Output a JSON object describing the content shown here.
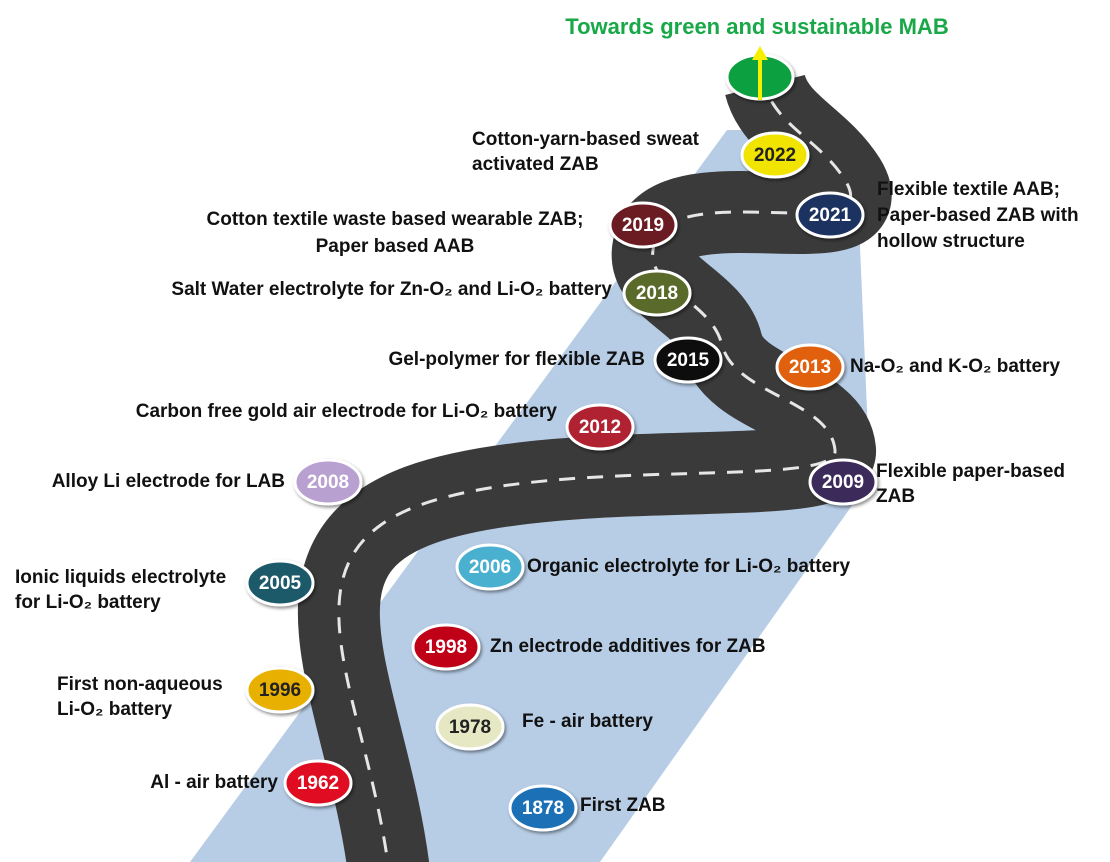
{
  "title": "Towards green and sustainable MAB",
  "milestones": [
    {
      "year": "1878",
      "lines": [
        "First ZAB"
      ]
    },
    {
      "year": "1962",
      "lines": [
        "Al - air battery"
      ]
    },
    {
      "year": "1978",
      "lines": [
        "Fe - air battery"
      ]
    },
    {
      "year": "1996",
      "lines": [
        "First non-aqueous",
        "Li-O₂ battery"
      ]
    },
    {
      "year": "1998",
      "lines": [
        "Zn electrode additives for ZAB"
      ]
    },
    {
      "year": "2005",
      "lines": [
        "Ionic liquids electrolyte",
        "for Li-O₂ battery"
      ]
    },
    {
      "year": "2006",
      "lines": [
        "Organic electrolyte for Li-O₂ battery"
      ]
    },
    {
      "year": "2008",
      "lines": [
        "Alloy Li electrode for LAB"
      ]
    },
    {
      "year": "2009",
      "lines": [
        "Flexible paper-based",
        "ZAB"
      ]
    },
    {
      "year": "2012",
      "lines": [
        "Carbon free gold air electrode for Li-O₂ battery"
      ]
    },
    {
      "year": "2013",
      "lines": [
        "Na-O₂ and K-O₂ battery"
      ]
    },
    {
      "year": "2015",
      "lines": [
        "Gel-polymer for flexible ZAB"
      ]
    },
    {
      "year": "2018",
      "lines": [
        "Salt Water electrolyte for Zn-O₂ and Li-O₂ battery"
      ]
    },
    {
      "year": "2019",
      "lines": [
        "Cotton textile waste based wearable ZAB;",
        "Paper based AAB"
      ]
    },
    {
      "year": "2021",
      "lines": [
        "Flexible textile AAB;",
        "Paper-based ZAB with",
        "hollow structure"
      ]
    },
    {
      "year": "2022",
      "lines": [
        "Cotton-yarn-based sweat",
        "activated ZAB"
      ]
    }
  ]
}
